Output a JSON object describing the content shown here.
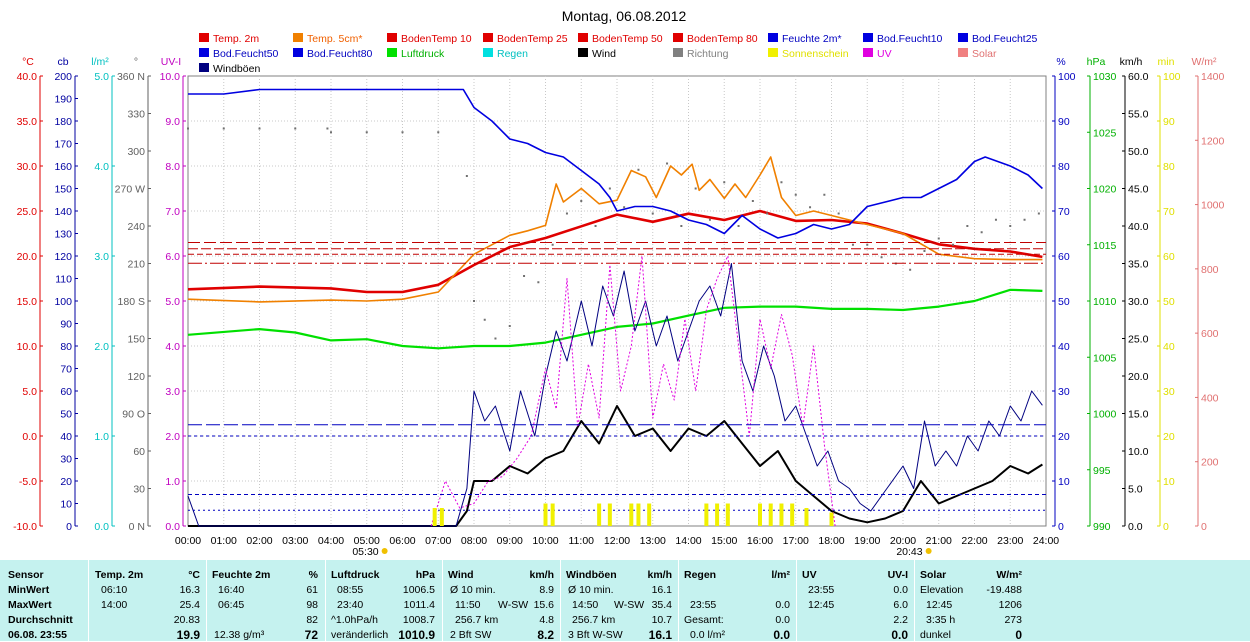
{
  "chart_data": {
    "type": "line",
    "title": "Montag, 06.08.2012",
    "x_ticks": [
      "00:00",
      "01:00",
      "02:00",
      "03:00",
      "04:00",
      "05:00",
      "06:00",
      "07:00",
      "08:00",
      "09:00",
      "10:00",
      "11:00",
      "12:00",
      "13:00",
      "14:00",
      "15:00",
      "16:00",
      "17:00",
      "18:00",
      "19:00",
      "20:00",
      "21:00",
      "22:00",
      "23:00",
      "24:00"
    ],
    "sunrise": "05:30",
    "sunset": "20:43",
    "legend": [
      {
        "label": "Temp. 2m",
        "color": "#e00000"
      },
      {
        "label": "Temp. 5cm*",
        "color": "#f08000"
      },
      {
        "label": "BodenTemp 10",
        "color": "#e00000"
      },
      {
        "label": "BodenTemp 25",
        "color": "#e00000"
      },
      {
        "label": "BodenTemp 50",
        "color": "#e00000"
      },
      {
        "label": "BodenTemp 80",
        "color": "#e00000"
      },
      {
        "label": "Feuchte 2m*",
        "color": "#0000e0"
      },
      {
        "label": "Bod.Feucht10",
        "color": "#0000e0"
      },
      {
        "label": "Bod.Feucht25",
        "color": "#0000e0"
      },
      {
        "label": "Bod.Feucht50",
        "color": "#0000e0"
      },
      {
        "label": "Bod.Feucht80",
        "color": "#0000e0"
      },
      {
        "label": "Luftdruck",
        "color": "#00e000"
      },
      {
        "label": "Regen",
        "color": "#00e0e0"
      },
      {
        "label": "Wind",
        "color": "#000000"
      },
      {
        "label": "Richtung",
        "color": "#808080"
      },
      {
        "label": "Sonnenschein",
        "color": "#f0f000"
      },
      {
        "label": "UV",
        "color": "#e000e0"
      },
      {
        "label": "Solar",
        "color": "#f08080"
      },
      {
        "label": "Windböen",
        "color": "#000080"
      }
    ],
    "axes_left": [
      {
        "unit": "°C",
        "color": "#e00000",
        "min": -10,
        "max": 40,
        "ticks": [
          "40.0",
          "35.0",
          "30.0",
          "25.0",
          "20.0",
          "15.0",
          "10.0",
          "5.0",
          "0.0",
          "-5.0",
          "-10.0"
        ]
      },
      {
        "unit": "cb",
        "color": "#0000a0",
        "min": 0,
        "max": 200,
        "ticks": [
          "200",
          "190",
          "180",
          "170",
          "160",
          "150",
          "140",
          "130",
          "120",
          "110",
          "100",
          "90",
          "80",
          "70",
          "60",
          "50",
          "40",
          "30",
          "20",
          "10",
          "0"
        ]
      },
      {
        "unit": "l/m²",
        "color": "#00c0c0",
        "min": 0,
        "max": 5,
        "ticks": [
          "5.0",
          "4.0",
          "3.0",
          "2.0",
          "1.0",
          "0.0"
        ]
      },
      {
        "unit": "°",
        "color": "#606060",
        "min": 0,
        "max": 360,
        "ticks": [
          "360 N",
          "330",
          "300",
          "270 W",
          "240",
          "210",
          "180 S",
          "150",
          "120",
          "90 O",
          "60",
          "30",
          "0 N"
        ]
      },
      {
        "unit": "UV-I",
        "color": "#c000c0",
        "min": 0,
        "max": 10,
        "ticks": [
          "10.0",
          "9.0",
          "8.0",
          "7.0",
          "6.0",
          "5.0",
          "4.0",
          "3.0",
          "2.0",
          "1.0",
          "0.0"
        ]
      }
    ],
    "axes_right": [
      {
        "unit": "%",
        "color": "#0000c0",
        "min": 0,
        "max": 100,
        "ticks": [
          "100",
          "90",
          "80",
          "70",
          "60",
          "50",
          "40",
          "30",
          "20",
          "10",
          "0"
        ]
      },
      {
        "unit": "hPa",
        "color": "#00b000",
        "min": 990,
        "max": 1030,
        "ticks": [
          "1030",
          "1025",
          "1020",
          "1015",
          "1010",
          "1005",
          "1000",
          "995",
          "990"
        ]
      },
      {
        "unit": "km/h",
        "color": "#000000",
        "min": 0,
        "max": 60,
        "ticks": [
          "60.0",
          "55.0",
          "50.0",
          "45.0",
          "40.0",
          "35.0",
          "30.0",
          "25.0",
          "20.0",
          "15.0",
          "10.0",
          "5.0",
          "0.0"
        ]
      },
      {
        "unit": "min",
        "color": "#e0e000",
        "min": 0,
        "max": 100,
        "ticks": [
          "100",
          "90",
          "80",
          "70",
          "60",
          "50",
          "40",
          "30",
          "20",
          "10",
          "0"
        ]
      },
      {
        "unit": "W/m²",
        "color": "#e07070",
        "min": 0,
        "max": 1400,
        "ticks": [
          "1400",
          "1200",
          "1000",
          "800",
          "600",
          "400",
          "200",
          "0"
        ]
      }
    ],
    "series": [
      {
        "name": "Temp. 2m",
        "unit": "°C",
        "hours": [
          0,
          2,
          4,
          5,
          6,
          7,
          8,
          9,
          10,
          11,
          12,
          13,
          14,
          15,
          16,
          17,
          18,
          19,
          20,
          21,
          22,
          23,
          23.9
        ],
        "values": [
          16.3,
          16.6,
          16.4,
          16.0,
          16.0,
          16.8,
          19.0,
          21.0,
          22.0,
          23.3,
          24.6,
          23.8,
          24.7,
          24.0,
          25.0,
          23.9,
          24.0,
          23.6,
          22.5,
          21.3,
          20.8,
          20.5,
          19.9
        ]
      },
      {
        "name": "Temp. 5cm*",
        "unit": "°C",
        "hours": [
          0,
          2,
          4,
          5,
          6,
          7,
          8,
          9,
          9.5,
          10,
          10.3,
          10.5,
          11,
          11.5,
          12,
          12.4,
          12.8,
          13.1,
          13.5,
          13.8,
          14.1,
          14.3,
          14.6,
          15,
          15.3,
          15.6,
          16,
          16.3,
          16.6,
          17,
          17.5,
          18,
          19,
          20,
          21,
          22,
          23,
          23.9
        ],
        "values": [
          15.2,
          14.9,
          15.1,
          15.0,
          15.2,
          16.0,
          20.2,
          22.3,
          22.8,
          23.4,
          28.0,
          26.0,
          27.5,
          25.8,
          26.2,
          29.5,
          28.8,
          26.5,
          30.0,
          29.0,
          30.2,
          27.3,
          28.5,
          26.4,
          28.0,
          26.5,
          29.0,
          31.0,
          26.5,
          24.5,
          25.0,
          24.5,
          23.5,
          22.5,
          20.2,
          19.7,
          19.6,
          19.6
        ]
      },
      {
        "name": "Feuchte 2m*",
        "unit": "%",
        "hours": [
          0,
          1,
          2,
          3,
          4,
          5,
          6,
          7,
          7.7,
          8,
          8.5,
          9,
          9.5,
          10,
          10.5,
          11,
          11.5,
          11.8,
          12,
          12.5,
          13,
          13.5,
          14,
          14.5,
          15,
          15.5,
          16,
          16.5,
          17,
          17.5,
          18,
          18.5,
          19,
          20,
          20.5,
          21,
          21.5,
          22,
          22.3,
          23,
          23.5,
          23.9
        ],
        "values": [
          96,
          96,
          97,
          97,
          97,
          97,
          97,
          97,
          97,
          93,
          90,
          86,
          85,
          83,
          82,
          79,
          76,
          73,
          70,
          71,
          71,
          70,
          68,
          67,
          65,
          69,
          66,
          64,
          65,
          67,
          66,
          67,
          71,
          73,
          73,
          75,
          77,
          81,
          82,
          80,
          78,
          75
        ]
      },
      {
        "name": "Luftdruck",
        "unit": "hPa",
        "hours": [
          0,
          2,
          3,
          4,
          5,
          6,
          7,
          8,
          9,
          10,
          11,
          12,
          13,
          14,
          15,
          16,
          17,
          18,
          19,
          20,
          21,
          22,
          23,
          23.9
        ],
        "values": [
          1007.0,
          1007.5,
          1007.2,
          1006.5,
          1006.6,
          1006.0,
          1005.8,
          1006.0,
          1006.0,
          1006.3,
          1007.0,
          1007.7,
          1008.0,
          1008.7,
          1009.4,
          1009.5,
          1009.5,
          1009.3,
          1009.3,
          1009.2,
          1009.5,
          1010.0,
          1011.0,
          1010.9
        ]
      },
      {
        "name": "Wind",
        "unit": "km/h",
        "hours": [
          0,
          7.5,
          7.8,
          8,
          8.5,
          9,
          9.5,
          10,
          10.5,
          11,
          11.5,
          12,
          12.5,
          13,
          13.5,
          14,
          14.5,
          15,
          15.5,
          16,
          16.5,
          17,
          17.5,
          18,
          18.5,
          19,
          19.5,
          20,
          20.5,
          21,
          21.5,
          22,
          22.5,
          23,
          23.5,
          23.9
        ],
        "values": [
          0,
          0,
          2,
          6,
          6,
          8,
          7,
          9,
          10,
          14,
          11,
          16,
          12,
          13,
          10,
          13,
          12,
          14,
          11,
          8,
          10,
          6,
          4,
          2,
          1,
          0.5,
          1,
          2,
          6,
          3,
          4,
          5,
          6,
          8,
          7,
          8.2
        ]
      },
      {
        "name": "Windböen",
        "unit": "km/h",
        "hours": [
          0,
          0.3,
          0.6,
          7.5,
          7.8,
          8,
          8.3,
          8.6,
          9,
          9.3,
          9.7,
          10,
          10.3,
          10.6,
          11,
          11.3,
          11.6,
          11.9,
          12.2,
          12.5,
          12.8,
          13.1,
          13.4,
          13.7,
          14,
          14.3,
          14.6,
          14.9,
          15.2,
          15.5,
          15.8,
          16.1,
          16.4,
          16.7,
          17,
          17.3,
          17.6,
          17.9,
          18.2,
          18.5,
          18.8,
          19.1,
          19.4,
          19.7,
          20,
          20.3,
          20.6,
          20.9,
          21.2,
          21.5,
          21.8,
          22.1,
          22.4,
          22.7,
          23,
          23.3,
          23.6,
          23.9
        ],
        "values": [
          4,
          0,
          0,
          0,
          5,
          18,
          14,
          16,
          10,
          18,
          12,
          20,
          26,
          22,
          30,
          24,
          32,
          28,
          34,
          26,
          30,
          24,
          28,
          22,
          26,
          30,
          32,
          28,
          35,
          22,
          18,
          24,
          20,
          14,
          16,
          12,
          8,
          10,
          6,
          5,
          3,
          2,
          4,
          6,
          8,
          5,
          14,
          8,
          10,
          8,
          12,
          10,
          14,
          12,
          16,
          14,
          18,
          16.1
        ]
      },
      {
        "name": "UV",
        "unit": "UV-I",
        "hours": [
          6.8,
          7.2,
          7.6,
          8,
          8.4,
          8.8,
          9.2,
          9.6,
          10,
          10.3,
          10.6,
          10.9,
          11.2,
          11.5,
          11.8,
          12.1,
          12.4,
          12.7,
          13,
          13.3,
          13.6,
          13.9,
          14.2,
          14.5,
          14.8,
          15.1,
          15.4,
          15.7,
          16,
          16.3,
          16.6,
          16.9,
          17.2,
          17.5,
          17.8,
          18.1
        ],
        "values": [
          0,
          1.0,
          0.4,
          0.5,
          1.0,
          1.1,
          1.5,
          2.0,
          3.5,
          2.6,
          5.5,
          2.2,
          3.6,
          2.4,
          5.8,
          3.0,
          4.0,
          6.0,
          2.4,
          3.6,
          2.8,
          4.6,
          3.0,
          4.8,
          5.5,
          6.0,
          4.0,
          2.0,
          4.6,
          3.5,
          4.7,
          3.8,
          2.2,
          4.0,
          1.8,
          0.0
        ]
      },
      {
        "name": "Richtung",
        "unit": "°",
        "hours": [
          0,
          1,
          2,
          3,
          3.9,
          4,
          5,
          6,
          7,
          7.8,
          8,
          8.3,
          8.6,
          9,
          9.4,
          9.8,
          10.2,
          10.6,
          11,
          11.4,
          11.8,
          12.2,
          12.6,
          13,
          13.4,
          13.8,
          14.2,
          14.6,
          15,
          15.4,
          15.8,
          16.2,
          16.6,
          17,
          17.4,
          17.8,
          18.2,
          18.6,
          19,
          19.4,
          19.8,
          20.2,
          20.6,
          21,
          21.4,
          21.8,
          22.2,
          22.6,
          23,
          23.4,
          23.8
        ],
        "values": [
          318,
          318,
          318,
          318,
          318,
          315,
          315,
          315,
          315,
          280,
          180,
          165,
          150,
          160,
          200,
          195,
          225,
          250,
          260,
          240,
          270,
          255,
          285,
          250,
          290,
          240,
          270,
          245,
          275,
          240,
          260,
          250,
          275,
          265,
          255,
          265,
          250,
          225,
          225,
          215,
          210,
          205,
          220,
          230,
          225,
          240,
          235,
          245,
          240,
          245,
          250
        ]
      },
      {
        "name": "BodenTemp 10",
        "unit": "°C",
        "hours": [
          0,
          24
        ],
        "values": [
          21.5,
          21.5
        ]
      },
      {
        "name": "BodenTemp 25",
        "unit": "°C",
        "hours": [
          0,
          24
        ],
        "values": [
          20.8,
          20.8
        ]
      },
      {
        "name": "BodenTemp 50",
        "unit": "°C",
        "hours": [
          0,
          24
        ],
        "values": [
          20.2,
          20.2
        ]
      },
      {
        "name": "BodenTemp 80",
        "unit": "°C",
        "hours": [
          0,
          24
        ],
        "values": [
          19.2,
          19.2
        ]
      },
      {
        "name": "Bod.Feucht10",
        "unit": "cb",
        "hours": [
          0,
          24
        ],
        "values": [
          40,
          40
        ]
      },
      {
        "name": "Bod.Feucht25",
        "unit": "cb",
        "hours": [
          0,
          24
        ],
        "values": [
          45,
          45
        ]
      },
      {
        "name": "Bod.Feucht50",
        "unit": "cb",
        "hours": [
          0,
          24
        ],
        "values": [
          14,
          14
        ]
      },
      {
        "name": "Bod.Feucht80",
        "unit": "cb",
        "hours": [
          0,
          24
        ],
        "values": [
          7,
          7
        ]
      },
      {
        "name": "Sonnenschein",
        "unit": "min",
        "hours": [
          6.9,
          7.1,
          10.0,
          10.2,
          11.5,
          11.8,
          12.4,
          12.6,
          12.9,
          14.5,
          14.8,
          15.1,
          16.0,
          16.3,
          16.6,
          16.9,
          17.3,
          18.0
        ],
        "values": [
          4,
          4,
          5,
          5,
          5,
          5,
          5,
          5,
          5,
          5,
          5,
          5,
          5,
          5,
          5,
          5,
          4,
          3
        ]
      }
    ],
    "grid": true
  },
  "table": {
    "headers": {
      "sensor": "Sensor",
      "temp": "Temp. 2m",
      "temp_unit": "°C",
      "hum": "Feuchte 2m",
      "hum_unit": "%",
      "press": "Luftdruck",
      "press_unit": "hPa",
      "wind": "Wind",
      "wind_unit": "km/h",
      "gust": "Windböen",
      "gust_unit": "km/h",
      "rain": "Regen",
      "rain_unit": "l/m²",
      "uv": "UV",
      "uv_unit": "UV-I",
      "solar": "Solar",
      "solar_unit": "W/m²"
    },
    "row_labels": {
      "min": "MinWert",
      "max": "MaxWert",
      "avg": "Durchschnitt",
      "last": "06.08. 23:55"
    },
    "temp": {
      "min_time": "06:10",
      "min": "16.3",
      "max_time": "14:00",
      "max": "25.4",
      "avg": "20.83",
      "last": "19.9"
    },
    "hum": {
      "min_time": "16:40",
      "min": "61",
      "max_time": "06:45",
      "max": "98",
      "avg": "82",
      "last_extra": "12.38 g/m³",
      "last": "72"
    },
    "press": {
      "min_time": "08:55",
      "min": "1006.5",
      "max_time": "23:40",
      "max": "1011.4",
      "avg_label": "^1.0hPa/h",
      "avg": "1008.7",
      "last_label": "veränderlich",
      "last": "1010.9"
    },
    "wind": {
      "row1_label": "Ø 10 min.",
      "row1": "8.9",
      "row2_time": "11:50",
      "row2_dir": "W-SW",
      "row2": "15.6",
      "row3_label": "256.7 km",
      "row3": "4.8",
      "row4_label": "2 Bft SW",
      "row4": "8.2"
    },
    "gust": {
      "row1_label": "Ø 10 min.",
      "row1": "16.1",
      "row2_time": "14:50",
      "row2_dir": "W-SW",
      "row2": "35.4",
      "row3_label": "256.7 km",
      "row3": "10.7",
      "row4_label": "3 Bft W-SW",
      "row4": "16.1"
    },
    "rain": {
      "max_time": "23:55",
      "max": "0.0",
      "gesamt_label": "Gesamt:",
      "gesamt": "0.0",
      "last_label": "0.0 l/m²",
      "last": "0.0"
    },
    "uv": {
      "min_time": "23:55",
      "min": "0.0",
      "max_time": "12:45",
      "max": "6.0",
      "avg": "2.2",
      "last": "0.0"
    },
    "solar": {
      "row1_label": "Elevation",
      "row1": "-19.488",
      "row2_time": "12:45",
      "row2": "1206",
      "row3_label": "3:35 h",
      "row3": "273",
      "row4_label": "dunkel",
      "row4": "0"
    }
  }
}
